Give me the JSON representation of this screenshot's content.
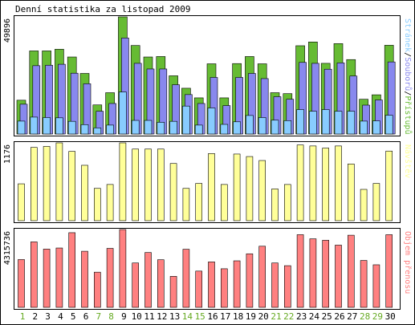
{
  "title": "Denní statistika za listopad 2009",
  "colors": {
    "pristupu": "#66bb33",
    "souboru": "#8888ee",
    "stranek": "#88ccff",
    "navstev": "#ffff99",
    "objem": "#ff8080",
    "weekday_tick": "#000000",
    "weekend_tick": "#66aa22"
  },
  "x_ticks": [
    "1",
    "2",
    "3",
    "4",
    "5",
    "6",
    "7",
    "8",
    "9",
    "10",
    "11",
    "12",
    "13",
    "14",
    "15",
    "16",
    "17",
    "18",
    "19",
    "20",
    "21",
    "22",
    "23",
    "24",
    "25",
    "26",
    "27",
    "28",
    "29",
    "30"
  ],
  "weekend_days": [
    "1",
    "7",
    "8",
    "14",
    "15",
    "21",
    "22",
    "28",
    "29"
  ],
  "chart_data": [
    {
      "type": "bar",
      "categories": [
        "1",
        "2",
        "3",
        "4",
        "5",
        "6",
        "7",
        "8",
        "9",
        "10",
        "11",
        "12",
        "13",
        "14",
        "15",
        "16",
        "17",
        "18",
        "19",
        "20",
        "21",
        "22",
        "23",
        "24",
        "25",
        "26",
        "27",
        "28",
        "29",
        "30"
      ],
      "ylabel": "49896",
      "ymax": 49896,
      "side_label_parts": [
        {
          "text": "Stránek",
          "color": "#88ccff"
        },
        {
          "text": "/",
          "color": "#000000"
        },
        {
          "text": "Souborů",
          "color": "#8888ee"
        },
        {
          "text": "/",
          "color": "#000000"
        },
        {
          "text": "Přístupů",
          "color": "#66bb33"
        }
      ],
      "series": [
        {
          "name": "Přístupů",
          "color": "#66bb33",
          "values": [
            14400,
            35400,
            35400,
            36100,
            32800,
            25800,
            12400,
            17600,
            49900,
            37700,
            32800,
            33000,
            24800,
            19500,
            15400,
            29900,
            15400,
            30000,
            33000,
            29900,
            17600,
            17200,
            37600,
            39200,
            30100,
            38500,
            31700,
            14800,
            16700,
            37800
          ]
        },
        {
          "name": "Souborů",
          "color": "#8888ee",
          "values": [
            12700,
            29100,
            29300,
            29700,
            25900,
            21400,
            9700,
            13000,
            40900,
            30100,
            27700,
            27700,
            21000,
            16800,
            13000,
            24100,
            12100,
            24100,
            25800,
            23600,
            15900,
            14800,
            30500,
            30100,
            27600,
            30300,
            24700,
            12300,
            14500,
            30700
          ]
        },
        {
          "name": "Stránek",
          "color": "#88ccff",
          "values": [
            5500,
            7200,
            7000,
            6900,
            5400,
            4000,
            2600,
            3800,
            17900,
            5800,
            5800,
            5000,
            5400,
            11900,
            3800,
            11100,
            4100,
            5200,
            7900,
            7000,
            5900,
            5700,
            10400,
            9700,
            10400,
            9700,
            9700,
            5500,
            5600,
            8000
          ]
        }
      ]
    },
    {
      "type": "bar",
      "categories": [
        "1",
        "2",
        "3",
        "4",
        "5",
        "6",
        "7",
        "8",
        "9",
        "10",
        "11",
        "12",
        "13",
        "14",
        "15",
        "16",
        "17",
        "18",
        "19",
        "20",
        "21",
        "22",
        "23",
        "24",
        "25",
        "26",
        "27",
        "28",
        "29",
        "30"
      ],
      "ylabel": "1176",
      "ymax": 1176,
      "side_label_parts": [
        {
          "text": "Návštěv",
          "color": "#ffff99"
        }
      ],
      "series": [
        {
          "name": "Návštěv",
          "color": "#ffff99",
          "values": [
            557,
            1107,
            1122,
            1176,
            1047,
            837,
            488,
            547,
            1176,
            1082,
            1082,
            1082,
            864,
            488,
            563,
            1014,
            547,
            1007,
            969,
            909,
            480,
            547,
            1144,
            1129,
            1097,
            1129,
            857,
            473,
            563,
            1052
          ]
        }
      ]
    },
    {
      "type": "bar",
      "categories": [
        "1",
        "2",
        "3",
        "4",
        "5",
        "6",
        "7",
        "8",
        "9",
        "10",
        "11",
        "12",
        "13",
        "14",
        "15",
        "16",
        "17",
        "18",
        "19",
        "20",
        "21",
        "22",
        "23",
        "24",
        "25",
        "26",
        "27",
        "28",
        "29",
        "30"
      ],
      "ylabel": "4315736",
      "ymax": 4315736,
      "side_label_parts": [
        {
          "text": "Objem přenosu",
          "color": "#ff8080"
        }
      ],
      "series": [
        {
          "name": "Objem přenosu",
          "color": "#ff8080",
          "values": [
            2650000,
            3630000,
            3230000,
            3290000,
            4140000,
            3110000,
            1950000,
            3270000,
            4315000,
            2460000,
            3040000,
            2640000,
            1720000,
            3220000,
            2010000,
            2520000,
            2140000,
            2580000,
            2970000,
            3390000,
            2460000,
            2310000,
            4030000,
            3800000,
            3720000,
            3450000,
            4000000,
            2600000,
            2360000,
            4030000
          ]
        }
      ]
    }
  ]
}
